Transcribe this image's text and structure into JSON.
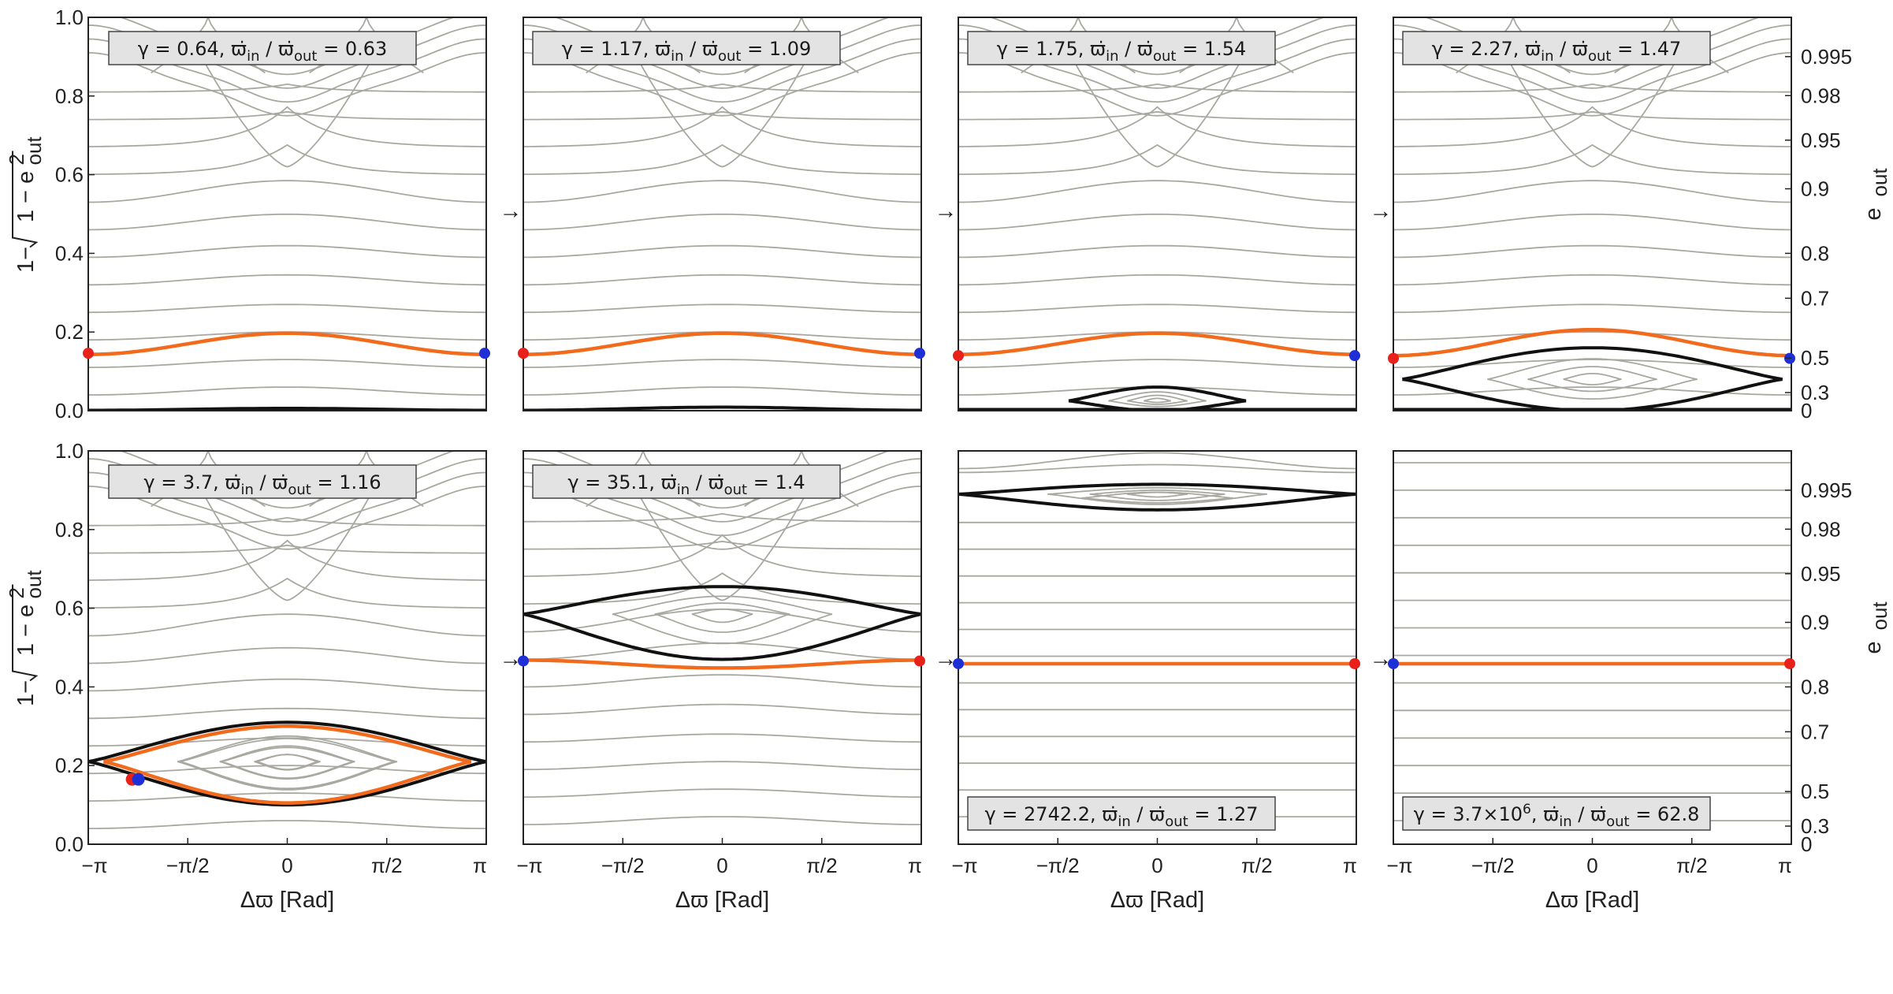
{
  "chart_data": {
    "type": "line",
    "title": "",
    "xlabel": "Δϖ [Rad]",
    "ylabel": "1−√(1 − e_out²)",
    "ylabel_main": "1−",
    "ylabel_root": "1 − e",
    "ylabel_sup": "2",
    "ylabel_sub": "out",
    "right_label": "e",
    "right_label_sub": "out",
    "xlim": [
      -3.1416,
      3.1416
    ],
    "ylim": [
      0,
      1
    ],
    "x_ticks": [
      "−π",
      "−π/2",
      "0",
      "π/2",
      "π"
    ],
    "x_tick_values": [
      -3.1416,
      -1.5708,
      0,
      1.5708,
      3.1416
    ],
    "y_ticks": [
      "0.0",
      "0.2",
      "0.4",
      "0.6",
      "0.8",
      "1.0"
    ],
    "y_tick_values": [
      0,
      0.2,
      0.4,
      0.6,
      0.8,
      1.0
    ],
    "e_ticks": [
      "0.995",
      "0.98",
      "0.95",
      "0.9",
      "0.8",
      "0.7",
      "0.5",
      "0.3",
      "0"
    ],
    "e_tick_values": [
      0.995,
      0.98,
      0.95,
      0.9,
      0.8,
      0.7,
      0.5,
      0.3,
      0
    ],
    "arrow_glyph": "→",
    "ann_parts": [
      "γ = ",
      ",   ϖ̇",
      "in",
      " / ϖ̇",
      "out",
      " = "
    ],
    "panels": [
      {
        "name": "panel-top-1",
        "gamma": "0.64",
        "ratio": "0.63",
        "ann_pos": "top",
        "shape": "sep",
        "sep": 0.0,
        "orange": {
          "base": 0.17,
          "amp": 0.027
        },
        "black_flat": 0.005,
        "red_side": "left",
        "dot_y": 0.146
      },
      {
        "name": "panel-top-2",
        "gamma": "1.17",
        "ratio": "1.09",
        "ann_pos": "top",
        "shape": "sep",
        "sep": 0.0,
        "orange": {
          "base": 0.17,
          "amp": 0.027
        },
        "black_flat": 0.008,
        "red_side": "left",
        "dot_y": 0.146
      },
      {
        "name": "panel-top-3",
        "gamma": "1.75",
        "ratio": "1.54",
        "ann_pos": "top",
        "shape": "sep",
        "sep": 0.0,
        "orange": {
          "base": 0.17,
          "amp": 0.027
        },
        "black_island": {
          "center": 0.025,
          "top": 0.06,
          "xspan": 1.4
        },
        "red_side": "left",
        "dot_y": 0.14
      },
      {
        "name": "panel-top-4",
        "gamma": "2.27",
        "ratio": "1.47",
        "ann_pos": "top",
        "shape": "sep",
        "sep": 0.0,
        "orange": {
          "base": 0.173,
          "amp": 0.033
        },
        "black_island": {
          "center": 0.08,
          "top": 0.16,
          "xspan": 3.0
        },
        "red_side": "left",
        "dot_y": 0.133
      },
      {
        "name": "panel-bot-1",
        "gamma": "3.7",
        "ratio": "1.16",
        "ann_pos": "top",
        "shape": "sep",
        "sep": 0.0,
        "orange_island": {
          "center": 0.21,
          "top": 0.3,
          "bottom": 0.105,
          "xspan": 2.9
        },
        "black_island": {
          "center": 0.21,
          "top": 0.31,
          "bottom": 0.1,
          "xspan": 3.14
        },
        "dot_x": -2.4,
        "dot_y": 0.165
      },
      {
        "name": "panel-bot-2",
        "gamma": "35.1",
        "ratio": "1.4",
        "ann_pos": "top",
        "shape": "sep",
        "sep": 0.0,
        "orange": {
          "base": 0.458,
          "amp": -0.01
        },
        "black_island": {
          "center": 0.585,
          "top": 0.655,
          "bottom": 0.47,
          "xspan": 3.14
        },
        "red_side": "right",
        "dot_y": 0.466
      },
      {
        "name": "panel-bot-3",
        "gamma": "2742.2",
        "ratio": "1.27",
        "ann_pos": "bottom",
        "shape": "upper",
        "orange": {
          "base": 0.459,
          "amp": 0
        },
        "black_island": {
          "center": 0.89,
          "top": 0.915,
          "bottom": 0.85,
          "xspan": 3.14
        },
        "red_side": "right",
        "dot_y": 0.459
      },
      {
        "name": "panel-bot-4",
        "gamma_base": "3.7×10",
        "gamma_exp": "6",
        "ratio": "62.8",
        "ann_pos": "bottom",
        "shape": "flat",
        "orange": {
          "base": 0.459,
          "amp": 0
        },
        "red_side": "right",
        "dot_y": 0.459
      }
    ],
    "colors": {
      "orange": "#f26a1b",
      "black": "#111111",
      "gray": "#a9a8a0",
      "red": "#e8211a",
      "blue": "#1f2fd6",
      "ann_bg": "#e3e3e3"
    }
  }
}
